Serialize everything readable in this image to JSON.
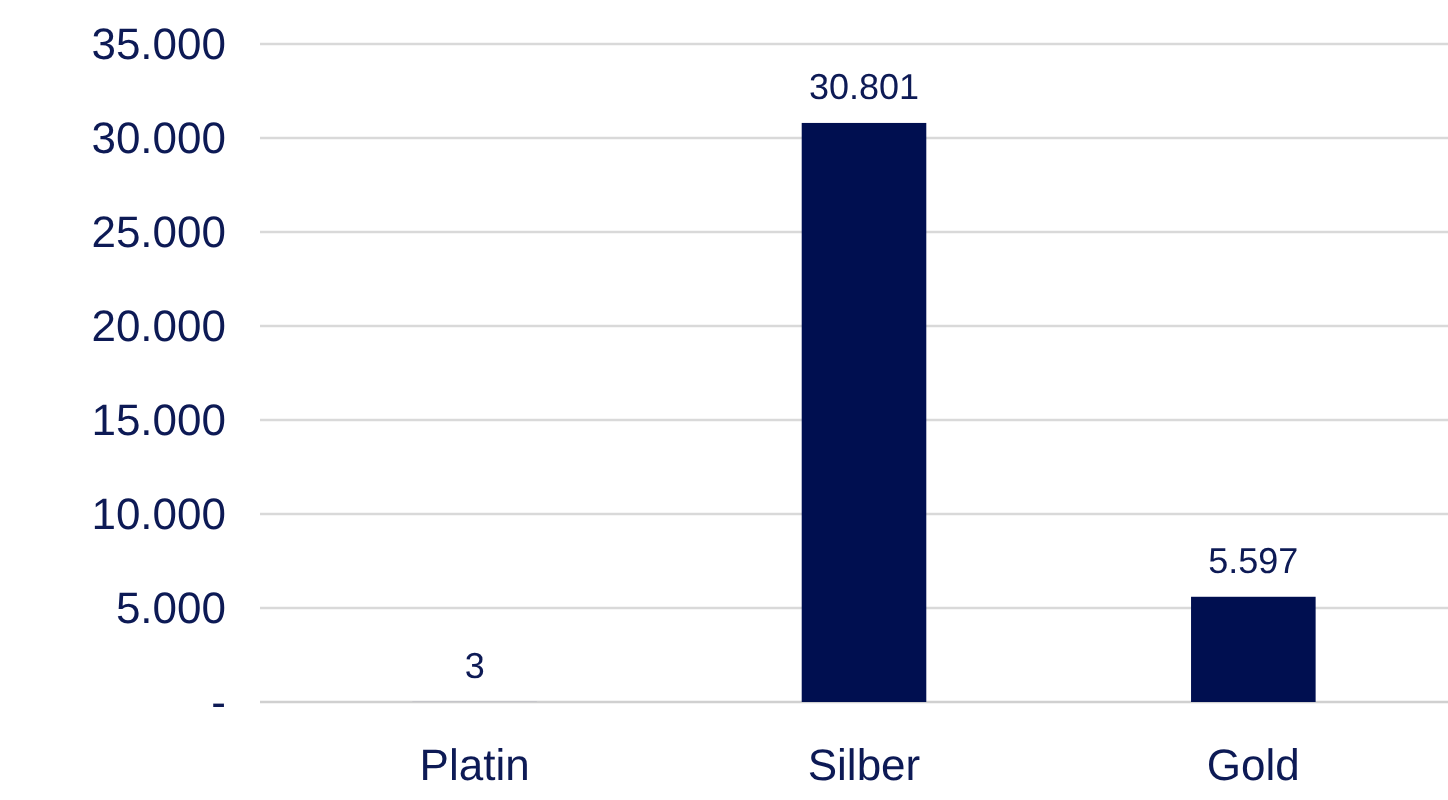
{
  "chart_data": {
    "type": "bar",
    "categories": [
      "Platin",
      "Silber",
      "Gold"
    ],
    "values": [
      3,
      30801,
      5597
    ],
    "color": "#000f50",
    "value_labels": [
      "3",
      "30.801",
      "5.597"
    ],
    "ylim": [
      0,
      35000
    ],
    "yticks": [
      {
        "value": 0,
        "label": "-"
      },
      {
        "value": 5000,
        "label": "5.000"
      },
      {
        "value": 10000,
        "label": "10.000"
      },
      {
        "value": 15000,
        "label": "15.000"
      },
      {
        "value": 20000,
        "label": "20.000"
      },
      {
        "value": 25000,
        "label": "25.000"
      },
      {
        "value": 30000,
        "label": "30.000"
      },
      {
        "value": 35000,
        "label": "35.000"
      }
    ],
    "grid": "y"
  }
}
